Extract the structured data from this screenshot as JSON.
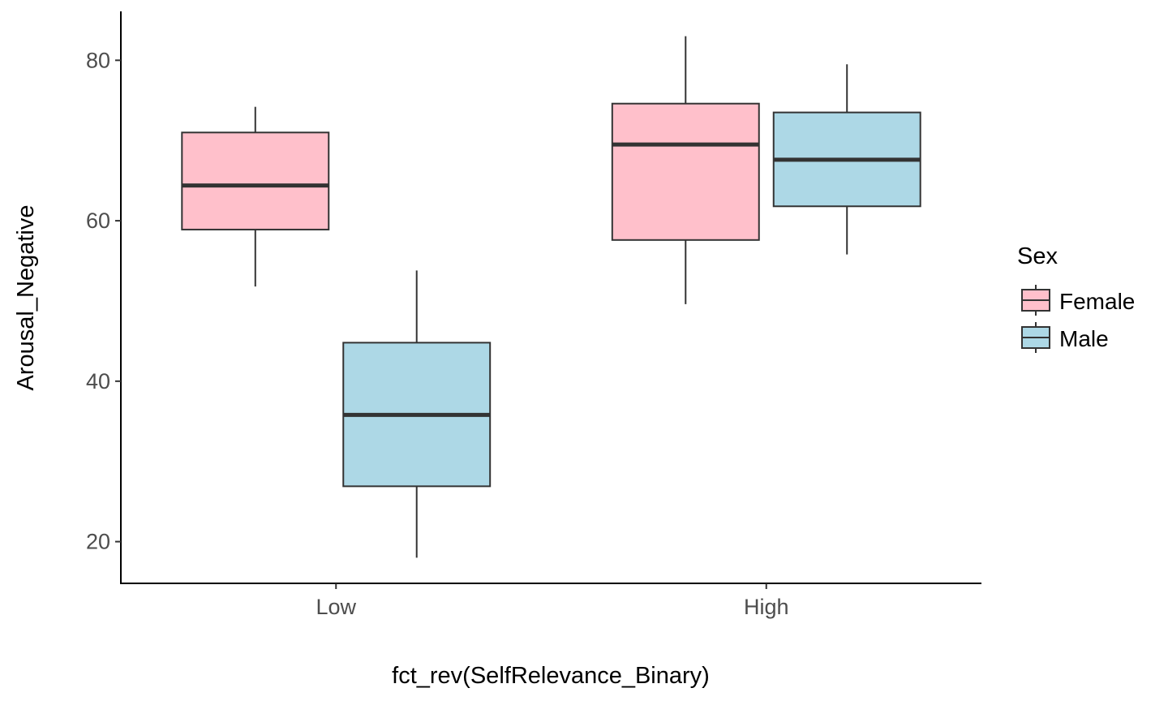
{
  "chart_data": {
    "type": "boxplot",
    "title": "",
    "xlabel": "fct_rev(SelfRelevance_Binary)",
    "ylabel": "Arousal_Negative",
    "categories": [
      "Low",
      "High"
    ],
    "y_ticks": [
      20,
      40,
      60,
      80
    ],
    "ylim": [
      14.8,
      86.1
    ],
    "grid": false,
    "legend": {
      "title": "Sex",
      "position": "right"
    },
    "series": [
      {
        "name": "Female",
        "color": "#ffc0cb",
        "boxes": [
          {
            "category": "Low",
            "whisker_low": 51.8,
            "q1": 58.9,
            "median": 64.4,
            "q3": 71.0,
            "whisker_high": 74.2
          },
          {
            "category": "High",
            "whisker_low": 49.6,
            "q1": 57.6,
            "median": 69.5,
            "q3": 74.6,
            "whisker_high": 83.0
          }
        ]
      },
      {
        "name": "Male",
        "color": "#add8e6",
        "boxes": [
          {
            "category": "Low",
            "whisker_low": 18.0,
            "q1": 26.9,
            "median": 35.8,
            "q3": 44.8,
            "whisker_high": 53.8
          },
          {
            "category": "High",
            "whisker_low": 55.8,
            "q1": 61.8,
            "median": 67.6,
            "q3": 73.5,
            "whisker_high": 79.5
          }
        ]
      }
    ]
  }
}
